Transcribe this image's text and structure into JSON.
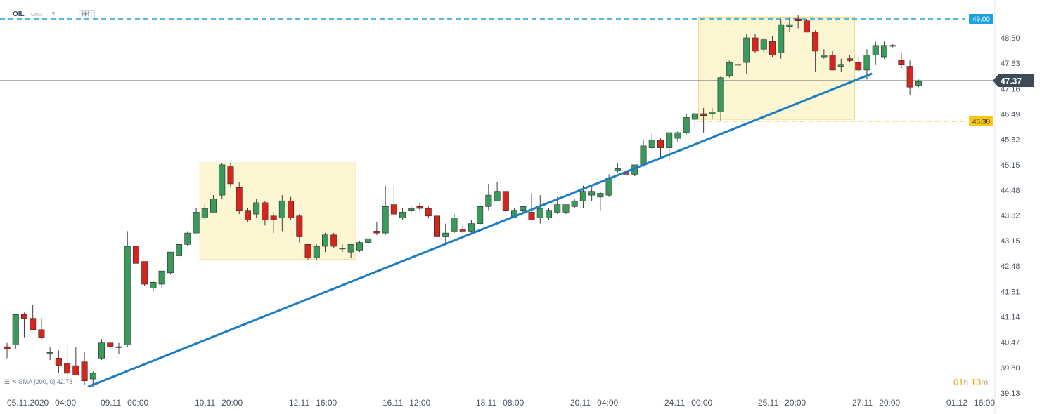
{
  "header": {
    "instrument": "OIL",
    "instrument_sub": "CMD",
    "timeframe": "H4"
  },
  "indicator": {
    "label": "SMA",
    "params": "[200,  0]",
    "value": "42.78"
  },
  "timer": {
    "h_value": "01",
    "h_unit": "h",
    "m_value": "13",
    "m_unit": "m"
  },
  "colors": {
    "bull": "#3a9a5b",
    "bear": "#d6241f",
    "trendline": "#1a7dc4",
    "resistance": "#1aa3e0",
    "support": "#f5c518",
    "zone_fill": "#fdf6d3",
    "zone_border": "#f1d77a",
    "price_tag": "#3d4a57"
  },
  "chart_data": {
    "type": "candlestick",
    "instrument": "OIL",
    "timeframe": "H4",
    "y_ticks": [
      "48.50",
      "47.83",
      "47.16",
      "46.49",
      "45.82",
      "45.15",
      "44.48",
      "43.82",
      "43.15",
      "42.48",
      "41.81",
      "41.14",
      "40.47",
      "39.80",
      "39.13"
    ],
    "ylim": [
      39.13,
      49.17
    ],
    "x_ticks": [
      "05.11.2020",
      "04:00",
      "09.11",
      "00:00",
      "10.11",
      "20:00",
      "12.11",
      "16:00",
      "16.11",
      "12:00",
      "18.11",
      "08:00",
      "20.11",
      "04:00",
      "24.11",
      "00:00",
      "25.11",
      "20:00",
      "27.11",
      "20:00",
      "01.12",
      "16:00"
    ],
    "current_price": "47.37",
    "levels": [
      {
        "name": "resistance",
        "value": 49.0,
        "label": "49.00"
      },
      {
        "name": "support",
        "value": 46.3,
        "label": "46.30"
      }
    ],
    "trendline": [
      {
        "i": 9.5,
        "price": 39.3
      },
      {
        "i": 100.5,
        "price": 47.55
      }
    ],
    "zones": [
      {
        "from_i": 23,
        "to_i": 40,
        "high": 45.2,
        "low": 42.65
      },
      {
        "from_i": 81,
        "to_i": 98,
        "high": 49.05,
        "low": 46.35
      }
    ],
    "candles": [
      [
        40.35,
        40.45,
        40.05,
        40.3
      ],
      [
        40.4,
        41.2,
        40.3,
        41.2
      ],
      [
        41.2,
        41.25,
        40.6,
        41.1
      ],
      [
        41.1,
        41.45,
        40.8,
        40.8
      ],
      [
        40.8,
        41.1,
        40.55,
        40.6
      ],
      [
        40.2,
        40.35,
        40.0,
        40.2
      ],
      [
        40.05,
        40.25,
        39.65,
        39.85
      ],
      [
        39.9,
        40.4,
        39.55,
        39.65
      ],
      [
        39.85,
        40.35,
        39.65,
        39.6
      ],
      [
        39.95,
        40.2,
        39.35,
        39.45
      ],
      [
        39.5,
        39.7,
        39.3,
        39.65
      ],
      [
        40.05,
        40.55,
        40.0,
        40.45
      ],
      [
        40.45,
        40.45,
        40.3,
        40.35
      ],
      [
        40.35,
        40.45,
        40.15,
        40.35
      ],
      [
        40.4,
        43.4,
        40.35,
        43.0
      ],
      [
        43.0,
        43.0,
        42.55,
        42.55
      ],
      [
        42.6,
        42.6,
        41.95,
        42.0
      ],
      [
        41.9,
        42.1,
        41.8,
        42.05
      ],
      [
        42.0,
        42.35,
        41.9,
        42.35
      ],
      [
        42.3,
        42.85,
        42.25,
        42.85
      ],
      [
        42.75,
        43.1,
        42.7,
        43.05
      ],
      [
        43.05,
        43.4,
        43.0,
        43.35
      ],
      [
        43.35,
        44.0,
        43.35,
        43.9
      ],
      [
        43.75,
        44.1,
        43.7,
        44.0
      ],
      [
        43.9,
        44.35,
        43.9,
        44.25
      ],
      [
        44.35,
        45.2,
        44.25,
        45.15
      ],
      [
        45.1,
        45.2,
        44.55,
        44.65
      ],
      [
        44.55,
        44.7,
        43.85,
        43.95
      ],
      [
        43.95,
        44.0,
        43.65,
        43.7
      ],
      [
        43.85,
        44.25,
        43.75,
        44.15
      ],
      [
        44.15,
        44.2,
        43.55,
        43.7
      ],
      [
        43.8,
        43.9,
        43.35,
        43.7
      ],
      [
        43.75,
        44.35,
        43.4,
        44.2
      ],
      [
        44.2,
        44.3,
        43.7,
        43.75
      ],
      [
        43.8,
        43.85,
        43.1,
        43.25
      ],
      [
        43.05,
        43.05,
        42.65,
        42.7
      ],
      [
        42.7,
        43.05,
        42.65,
        43.0
      ],
      [
        43.0,
        43.35,
        42.85,
        43.3
      ],
      [
        43.3,
        43.35,
        42.95,
        43.0
      ],
      [
        42.95,
        43.05,
        42.85,
        42.95
      ],
      [
        42.85,
        43.05,
        42.7,
        43.05
      ],
      [
        42.9,
        43.15,
        42.85,
        43.1
      ],
      [
        43.1,
        43.2,
        43.05,
        43.2
      ],
      [
        43.4,
        43.65,
        43.3,
        43.35
      ],
      [
        43.35,
        44.6,
        43.3,
        44.05
      ],
      [
        44.1,
        44.6,
        43.8,
        43.85
      ],
      [
        43.75,
        44.0,
        43.7,
        43.9
      ],
      [
        43.95,
        44.05,
        43.9,
        44.0
      ],
      [
        44.05,
        44.15,
        43.95,
        44.0
      ],
      [
        44.0,
        44.05,
        43.75,
        43.8
      ],
      [
        43.8,
        43.8,
        43.1,
        43.25
      ],
      [
        43.25,
        43.6,
        43.05,
        43.35
      ],
      [
        43.4,
        43.85,
        43.35,
        43.75
      ],
      [
        43.45,
        43.55,
        43.35,
        43.4
      ],
      [
        43.4,
        43.7,
        43.35,
        43.6
      ],
      [
        43.6,
        44.15,
        43.55,
        44.05
      ],
      [
        44.05,
        44.65,
        43.95,
        44.35
      ],
      [
        44.2,
        44.7,
        44.2,
        44.45
      ],
      [
        44.45,
        44.45,
        43.9,
        43.95
      ],
      [
        43.75,
        44.0,
        43.75,
        43.95
      ],
      [
        43.95,
        44.05,
        43.9,
        44.05
      ],
      [
        43.9,
        44.4,
        43.7,
        43.7
      ],
      [
        43.75,
        44.35,
        43.6,
        44.0
      ],
      [
        43.75,
        44.0,
        43.7,
        43.95
      ],
      [
        43.9,
        44.3,
        43.85,
        44.1
      ],
      [
        43.9,
        44.1,
        43.85,
        44.1
      ],
      [
        44.05,
        44.25,
        44.0,
        44.2
      ],
      [
        44.2,
        44.6,
        44.0,
        44.45
      ],
      [
        44.35,
        44.55,
        44.2,
        44.45
      ],
      [
        44.3,
        44.45,
        43.95,
        44.4
      ],
      [
        44.35,
        44.9,
        44.3,
        44.8
      ],
      [
        45.0,
        45.2,
        44.95,
        45.05
      ],
      [
        44.95,
        45.1,
        44.85,
        44.9
      ],
      [
        44.9,
        45.1,
        44.85,
        45.15
      ],
      [
        45.15,
        45.8,
        45.1,
        45.65
      ],
      [
        45.6,
        46.0,
        45.55,
        45.8
      ],
      [
        45.8,
        45.85,
        45.35,
        45.6
      ],
      [
        45.6,
        46.0,
        45.25,
        46.0
      ],
      [
        45.85,
        46.05,
        45.75,
        46.0
      ],
      [
        46.0,
        46.5,
        45.95,
        46.4
      ],
      [
        46.35,
        46.55,
        46.1,
        46.5
      ],
      [
        46.5,
        46.65,
        46.0,
        46.45
      ],
      [
        46.5,
        46.65,
        46.35,
        46.55
      ],
      [
        46.55,
        47.5,
        46.3,
        47.45
      ],
      [
        47.5,
        47.9,
        47.45,
        47.85
      ],
      [
        47.8,
        47.9,
        47.65,
        47.8
      ],
      [
        47.85,
        48.6,
        47.55,
        48.5
      ],
      [
        48.5,
        48.6,
        48.1,
        48.15
      ],
      [
        48.2,
        48.5,
        48.1,
        48.45
      ],
      [
        48.4,
        48.55,
        48.0,
        48.05
      ],
      [
        48.1,
        49.0,
        47.95,
        48.85
      ],
      [
        48.8,
        49.05,
        48.65,
        48.85
      ],
      [
        49.0,
        49.1,
        48.75,
        48.95
      ],
      [
        48.95,
        49.0,
        48.65,
        48.65
      ],
      [
        48.65,
        48.7,
        47.6,
        48.15
      ],
      [
        48.0,
        48.2,
        47.95,
        48.05
      ],
      [
        48.05,
        48.15,
        47.65,
        47.65
      ],
      [
        47.75,
        47.95,
        47.6,
        47.8
      ],
      [
        47.95,
        48.05,
        47.85,
        47.9
      ],
      [
        47.85,
        48.0,
        47.6,
        47.65
      ],
      [
        47.65,
        48.2,
        47.4,
        48.05
      ],
      [
        48.05,
        48.4,
        47.8,
        48.3
      ],
      [
        48.0,
        48.4,
        47.95,
        48.3
      ],
      [
        48.3,
        48.35,
        48.25,
        48.3
      ],
      [
        47.9,
        48.1,
        47.7,
        47.8
      ],
      [
        47.75,
        47.9,
        47.0,
        47.2
      ],
      [
        47.25,
        47.4,
        47.2,
        47.35
      ]
    ]
  }
}
